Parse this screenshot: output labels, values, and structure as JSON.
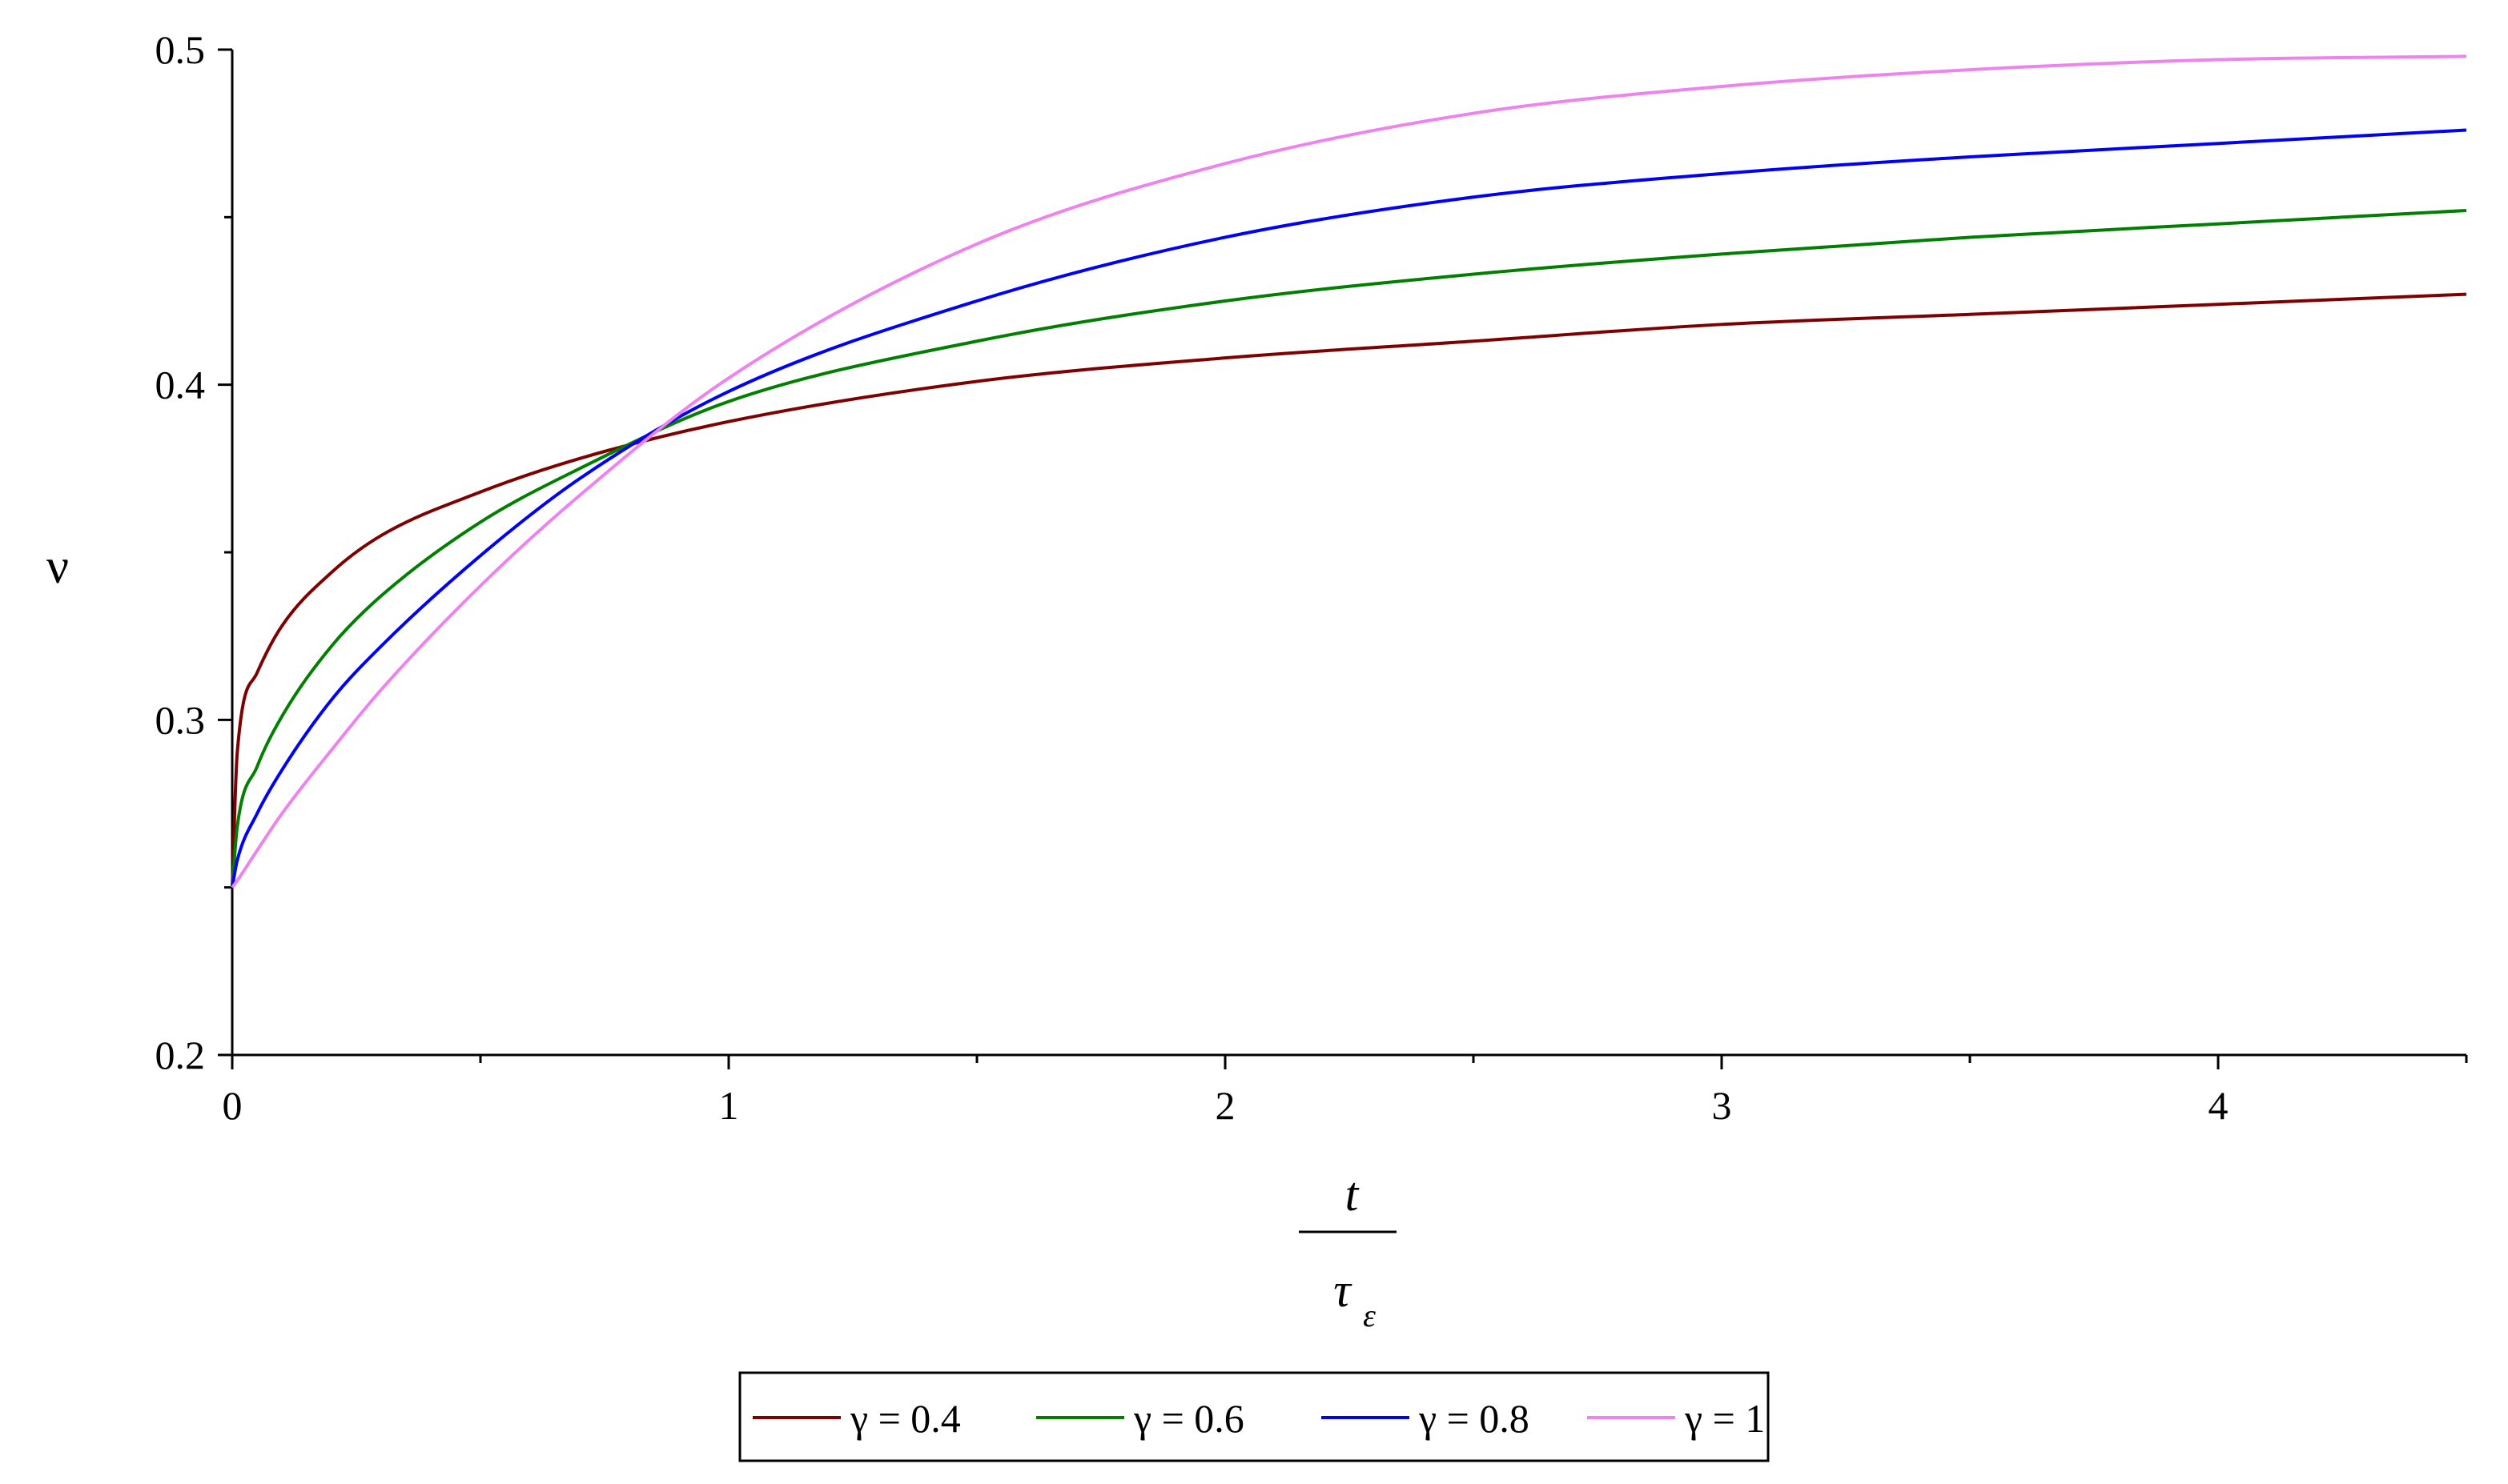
{
  "chart_data": {
    "type": "line",
    "title": "",
    "ylabel": "ν",
    "xlabel": {
      "numerator": "t",
      "denominator": "τ",
      "denominator_subscript": "ε"
    },
    "xlim": [
      0,
      4.5
    ],
    "ylim": [
      0.2,
      0.5
    ],
    "x_ticks": [
      0,
      1,
      2,
      3,
      4
    ],
    "y_ticks": [
      0.2,
      0.3,
      0.4,
      0.5
    ],
    "x_tick_labels": [
      "0",
      "1",
      "2",
      "3",
      "4"
    ],
    "y_tick_labels": [
      "0.2",
      "0.3",
      "0.4",
      "0.5"
    ],
    "grid": false,
    "legend_position": "bottom-center",
    "series": [
      {
        "name": "γ = 0.4",
        "color": "#7f0000",
        "x": [
          0,
          0.01,
          0.05,
          0.1,
          0.2,
          0.3,
          0.5,
          0.7,
          1,
          1.5,
          2,
          2.5,
          3,
          3.5,
          4,
          4.5
        ],
        "y": [
          0.25,
          0.29,
          0.314,
          0.328,
          0.344,
          0.355,
          0.368,
          0.378,
          0.389,
          0.401,
          0.408,
          0.413,
          0.418,
          0.421,
          0.424,
          0.427
        ]
      },
      {
        "name": "γ = 0.6",
        "color": "#007f00",
        "x": [
          0,
          0.01,
          0.05,
          0.1,
          0.2,
          0.3,
          0.5,
          0.7,
          1,
          1.5,
          2,
          2.5,
          3,
          3.5,
          4,
          4.5
        ],
        "y": [
          0.25,
          0.268,
          0.286,
          0.301,
          0.322,
          0.337,
          0.359,
          0.375,
          0.395,
          0.413,
          0.425,
          0.433,
          0.439,
          0.444,
          0.448,
          0.452
        ]
      },
      {
        "name": "γ = 0.8",
        "color": "#0000ff",
        "x": [
          0,
          0.01,
          0.05,
          0.1,
          0.2,
          0.3,
          0.5,
          0.7,
          1,
          1.5,
          2,
          2.5,
          3,
          3.5,
          4,
          4.5
        ],
        "y": [
          0.25,
          0.258,
          0.272,
          0.285,
          0.306,
          0.322,
          0.349,
          0.372,
          0.398,
          0.425,
          0.444,
          0.456,
          0.463,
          0.468,
          0.472,
          0.476
        ]
      },
      {
        "name": "γ = 1",
        "color": "#ee82ee",
        "x": [
          0,
          0.01,
          0.05,
          0.1,
          0.2,
          0.3,
          0.5,
          0.7,
          1,
          1.5,
          2,
          2.5,
          3,
          3.5,
          4,
          4.5
        ],
        "y": [
          0.25,
          0.252,
          0.261,
          0.272,
          0.291,
          0.309,
          0.34,
          0.367,
          0.402,
          0.442,
          0.466,
          0.481,
          0.489,
          0.494,
          0.497,
          0.498
        ]
      }
    ]
  }
}
